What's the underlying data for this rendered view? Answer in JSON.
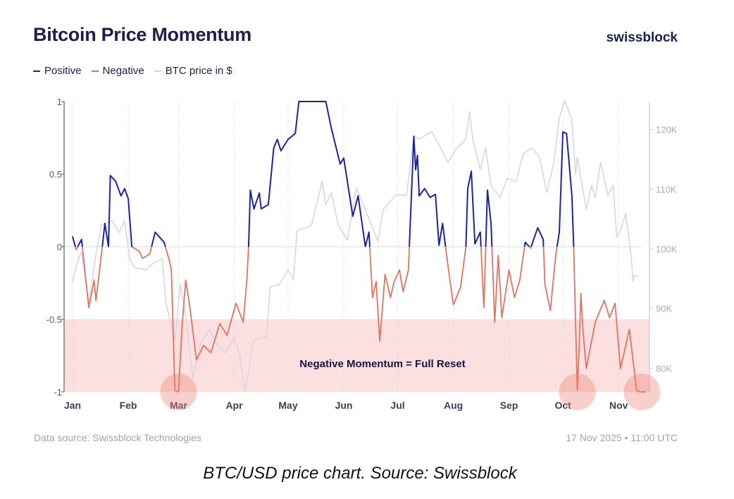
{
  "header": {
    "title": "Bitcoin Price Momentum",
    "brand": "swissblock"
  },
  "legend": [
    {
      "label": "Positive",
      "color": "#1c22a8"
    },
    {
      "label": "Negative",
      "color": "#e8705f"
    },
    {
      "label": "BTC price in $",
      "color": "#d6d7e0"
    }
  ],
  "footer": {
    "source": "Data source: Swissblock Technologies",
    "timestamp": "17 Nov 2025 • 11:00 UTC"
  },
  "caption": "BTC/USD price chart. Source: Swissblock",
  "chart_data": {
    "type": "line",
    "title": "Bitcoin Price Momentum",
    "x_tick_labels": [
      "Jan",
      "Feb",
      "Mar",
      "Apr",
      "May",
      "Jun",
      "Jul",
      "Aug",
      "Sep",
      "Oct",
      "Nov"
    ],
    "x_tick_dates": [
      "2025-01-01",
      "2025-02-01",
      "2025-03-01",
      "2025-04-01",
      "2025-05-01",
      "2025-06-01",
      "2025-07-01",
      "2025-08-01",
      "2025-09-01",
      "2025-10-01",
      "2025-11-01"
    ],
    "y_left": {
      "range": [
        -1,
        1
      ],
      "ticks": [
        1,
        0.5,
        0,
        -0.5,
        -1
      ],
      "tick_labels": [
        "1",
        "0.5",
        "0",
        "-0.5",
        "-1"
      ]
    },
    "y_right": {
      "range": [
        76000,
        125000
      ],
      "ticks": [
        120000,
        110000,
        100000,
        90000,
        80000
      ],
      "tick_labels": [
        "120K",
        "110K",
        "100K",
        "90K",
        "80K"
      ]
    },
    "grid": "vertical dotted at months",
    "legend_placement": "top-left",
    "band": {
      "from": -1,
      "to": -0.5,
      "label": "Negative Momentum = Full Reset",
      "color": "#fbe0df"
    },
    "highlight_dates": [
      "2025-03-01",
      "2025-10-09",
      "2025-11-14"
    ],
    "momentum": {
      "axis": "left",
      "positive_color": "#1c22a8",
      "negative_color": "#e8705f",
      "points": [
        [
          "2025-01-01",
          0.07
        ],
        [
          "2025-01-03",
          -0.02
        ],
        [
          "2025-01-06",
          0.05
        ],
        [
          "2025-01-10",
          -0.42
        ],
        [
          "2025-01-13",
          -0.23
        ],
        [
          "2025-01-14",
          -0.37
        ],
        [
          "2025-01-17",
          -0.06
        ],
        [
          "2025-01-19",
          0.16
        ],
        [
          "2025-01-21",
          0
        ],
        [
          "2025-01-22",
          0.49
        ],
        [
          "2025-01-25",
          0.45
        ],
        [
          "2025-01-28",
          0.35
        ],
        [
          "2025-01-30",
          0.4
        ],
        [
          "2025-02-01",
          0.33
        ],
        [
          "2025-02-03",
          0
        ],
        [
          "2025-02-07",
          -0.03
        ],
        [
          "2025-02-09",
          -0.08
        ],
        [
          "2025-02-13",
          -0.05
        ],
        [
          "2025-02-16",
          0.1
        ],
        [
          "2025-02-21",
          0.03
        ],
        [
          "2025-02-24",
          -0.1
        ],
        [
          "2025-02-25",
          -0.16
        ],
        [
          "2025-02-27",
          -0.99
        ],
        [
          "2025-03-01",
          -1
        ],
        [
          "2025-03-03",
          -0.55
        ],
        [
          "2025-03-05",
          -0.23
        ],
        [
          "2025-03-07",
          -0.39
        ],
        [
          "2025-03-11",
          -0.78
        ],
        [
          "2025-03-15",
          -0.68
        ],
        [
          "2025-03-19",
          -0.73
        ],
        [
          "2025-03-24",
          -0.53
        ],
        [
          "2025-03-28",
          -0.61
        ],
        [
          "2025-04-02",
          -0.39
        ],
        [
          "2025-04-06",
          -0.52
        ],
        [
          "2025-04-08",
          -0.23
        ],
        [
          "2025-04-09",
          0
        ],
        [
          "2025-04-10",
          0.39
        ],
        [
          "2025-04-12",
          0.26
        ],
        [
          "2025-04-15",
          0.37
        ],
        [
          "2025-04-16",
          0.26
        ],
        [
          "2025-04-20",
          0.29
        ],
        [
          "2025-04-23",
          0.68
        ],
        [
          "2025-04-25",
          0.74
        ],
        [
          "2025-04-27",
          0.66
        ],
        [
          "2025-05-01",
          0.74
        ],
        [
          "2025-05-05",
          0.78
        ],
        [
          "2025-05-07",
          1.0
        ],
        [
          "2025-05-22",
          1.0
        ],
        [
          "2025-05-25",
          0.82
        ],
        [
          "2025-05-30",
          0.57
        ],
        [
          "2025-06-01",
          0.61
        ],
        [
          "2025-06-06",
          0.21
        ],
        [
          "2025-06-09",
          0.35
        ],
        [
          "2025-06-13",
          0
        ],
        [
          "2025-06-15",
          0.1
        ],
        [
          "2025-06-16",
          -0.13
        ],
        [
          "2025-06-17",
          -0.35
        ],
        [
          "2025-06-19",
          -0.24
        ],
        [
          "2025-06-21",
          -0.65
        ],
        [
          "2025-06-24",
          -0.19
        ],
        [
          "2025-06-27",
          -0.35
        ],
        [
          "2025-06-29",
          -0.24
        ],
        [
          "2025-07-02",
          -0.16
        ],
        [
          "2025-07-04",
          -0.31
        ],
        [
          "2025-07-07",
          -0.16
        ],
        [
          "2025-07-08",
          0.16
        ],
        [
          "2025-07-10",
          0.76
        ],
        [
          "2025-07-11",
          0.53
        ],
        [
          "2025-07-12",
          0.63
        ],
        [
          "2025-07-13",
          0.35
        ],
        [
          "2025-07-16",
          0.4
        ],
        [
          "2025-07-19",
          0.34
        ],
        [
          "2025-07-22",
          0.36
        ],
        [
          "2025-07-24",
          0.01
        ],
        [
          "2025-07-26",
          0.16
        ],
        [
          "2025-07-29",
          -0.13
        ],
        [
          "2025-08-01",
          -0.4
        ],
        [
          "2025-08-05",
          -0.28
        ],
        [
          "2025-08-08",
          0
        ],
        [
          "2025-08-09",
          0.4
        ],
        [
          "2025-08-11",
          0.52
        ],
        [
          "2025-08-13",
          0.02
        ],
        [
          "2025-08-16",
          0.1
        ],
        [
          "2025-08-18",
          -0.42
        ],
        [
          "2025-08-20",
          0.39
        ],
        [
          "2025-08-22",
          0.16
        ],
        [
          "2025-08-24",
          -0.52
        ],
        [
          "2025-08-26",
          -0.06
        ],
        [
          "2025-08-28",
          -0.49
        ],
        [
          "2025-09-01",
          -0.16
        ],
        [
          "2025-09-04",
          -0.35
        ],
        [
          "2025-09-07",
          -0.23
        ],
        [
          "2025-09-10",
          0.03
        ],
        [
          "2025-09-13",
          -0.01
        ],
        [
          "2025-09-17",
          0.13
        ],
        [
          "2025-09-20",
          0.05
        ],
        [
          "2025-09-21",
          -0.26
        ],
        [
          "2025-09-24",
          -0.44
        ],
        [
          "2025-09-27",
          -0.06
        ],
        [
          "2025-09-29",
          0.1
        ],
        [
          "2025-10-01",
          0.79
        ],
        [
          "2025-10-03",
          0.78
        ],
        [
          "2025-10-06",
          0.35
        ],
        [
          "2025-10-07",
          0
        ],
        [
          "2025-10-09",
          -0.99
        ],
        [
          "2025-10-10",
          -0.7
        ],
        [
          "2025-10-11",
          -0.32
        ],
        [
          "2025-10-12",
          -0.55
        ],
        [
          "2025-10-14",
          -0.84
        ],
        [
          "2025-10-19",
          -0.52
        ],
        [
          "2025-10-24",
          -0.37
        ],
        [
          "2025-10-27",
          -0.49
        ],
        [
          "2025-10-30",
          -0.39
        ],
        [
          "2025-11-02",
          -0.84
        ],
        [
          "2025-11-07",
          -0.57
        ],
        [
          "2025-11-11",
          -0.99
        ],
        [
          "2025-11-13",
          -1
        ],
        [
          "2025-11-16",
          -1
        ]
      ]
    },
    "btc_price": {
      "name": "BTC price in $",
      "axis": "right",
      "color": "#d6d7e0",
      "points": [
        [
          "2025-01-01",
          94500
        ],
        [
          "2025-01-04",
          98000
        ],
        [
          "2025-01-06",
          99500
        ],
        [
          "2025-01-10",
          91000
        ],
        [
          "2025-01-14",
          99000
        ],
        [
          "2025-01-17",
          104000
        ],
        [
          "2025-01-23",
          104700
        ],
        [
          "2025-01-27",
          102700
        ],
        [
          "2025-01-30",
          104700
        ],
        [
          "2025-02-02",
          98000
        ],
        [
          "2025-02-05",
          96800
        ],
        [
          "2025-02-11",
          96500
        ],
        [
          "2025-02-15",
          97600
        ],
        [
          "2025-02-20",
          98300
        ],
        [
          "2025-02-22",
          90900
        ],
        [
          "2025-02-27",
          84700
        ],
        [
          "2025-03-02",
          94000
        ],
        [
          "2025-03-05",
          88900
        ],
        [
          "2025-03-09",
          78300
        ],
        [
          "2025-03-13",
          83800
        ],
        [
          "2025-03-18",
          86500
        ],
        [
          "2025-03-22",
          84200
        ],
        [
          "2025-03-27",
          82600
        ],
        [
          "2025-04-01",
          85000
        ],
        [
          "2025-04-04",
          82300
        ],
        [
          "2025-04-07",
          76200
        ],
        [
          "2025-04-09",
          79500
        ],
        [
          "2025-04-12",
          84700
        ],
        [
          "2025-04-19",
          85400
        ],
        [
          "2025-04-21",
          93600
        ],
        [
          "2025-04-26",
          94000
        ],
        [
          "2025-05-01",
          96500
        ],
        [
          "2025-05-04",
          94800
        ],
        [
          "2025-05-06",
          103000
        ],
        [
          "2025-05-14",
          103900
        ],
        [
          "2025-05-20",
          111300
        ],
        [
          "2025-05-22",
          107400
        ],
        [
          "2025-05-25",
          109400
        ],
        [
          "2025-05-29",
          103900
        ],
        [
          "2025-06-03",
          101500
        ],
        [
          "2025-06-08",
          110200
        ],
        [
          "2025-06-13",
          106600
        ],
        [
          "2025-06-20",
          101200
        ],
        [
          "2025-06-23",
          106600
        ],
        [
          "2025-06-28",
          108300
        ],
        [
          "2025-06-30",
          109000
        ],
        [
          "2025-07-06",
          109000
        ],
        [
          "2025-07-10",
          118900
        ],
        [
          "2025-07-13",
          118400
        ],
        [
          "2025-07-20",
          119600
        ],
        [
          "2025-07-23",
          118000
        ],
        [
          "2025-07-29",
          114500
        ],
        [
          "2025-08-03",
          116900
        ],
        [
          "2025-08-08",
          118400
        ],
        [
          "2025-08-10",
          123000
        ],
        [
          "2025-08-12",
          118000
        ],
        [
          "2025-08-16",
          113300
        ],
        [
          "2025-08-19",
          116900
        ],
        [
          "2025-08-22",
          110600
        ],
        [
          "2025-08-27",
          108600
        ],
        [
          "2025-08-31",
          111800
        ],
        [
          "2025-09-05",
          111300
        ],
        [
          "2025-09-09",
          116000
        ],
        [
          "2025-09-14",
          116900
        ],
        [
          "2025-09-18",
          115300
        ],
        [
          "2025-09-22",
          109400
        ],
        [
          "2025-09-26",
          114500
        ],
        [
          "2025-09-29",
          122000
        ],
        [
          "2025-10-02",
          124800
        ],
        [
          "2025-10-06",
          121600
        ],
        [
          "2025-10-08",
          112500
        ],
        [
          "2025-10-09",
          115300
        ],
        [
          "2025-10-14",
          106600
        ],
        [
          "2025-10-17",
          110600
        ],
        [
          "2025-10-19",
          108600
        ],
        [
          "2025-10-22",
          114500
        ],
        [
          "2025-10-26",
          109000
        ],
        [
          "2025-10-29",
          110600
        ],
        [
          "2025-10-31",
          101900
        ],
        [
          "2025-11-02",
          103000
        ],
        [
          "2025-11-05",
          105900
        ],
        [
          "2025-11-08",
          98800
        ],
        [
          "2025-11-09",
          94500
        ],
        [
          "2025-11-10",
          95600
        ],
        [
          "2025-11-12",
          95300
        ]
      ]
    }
  }
}
